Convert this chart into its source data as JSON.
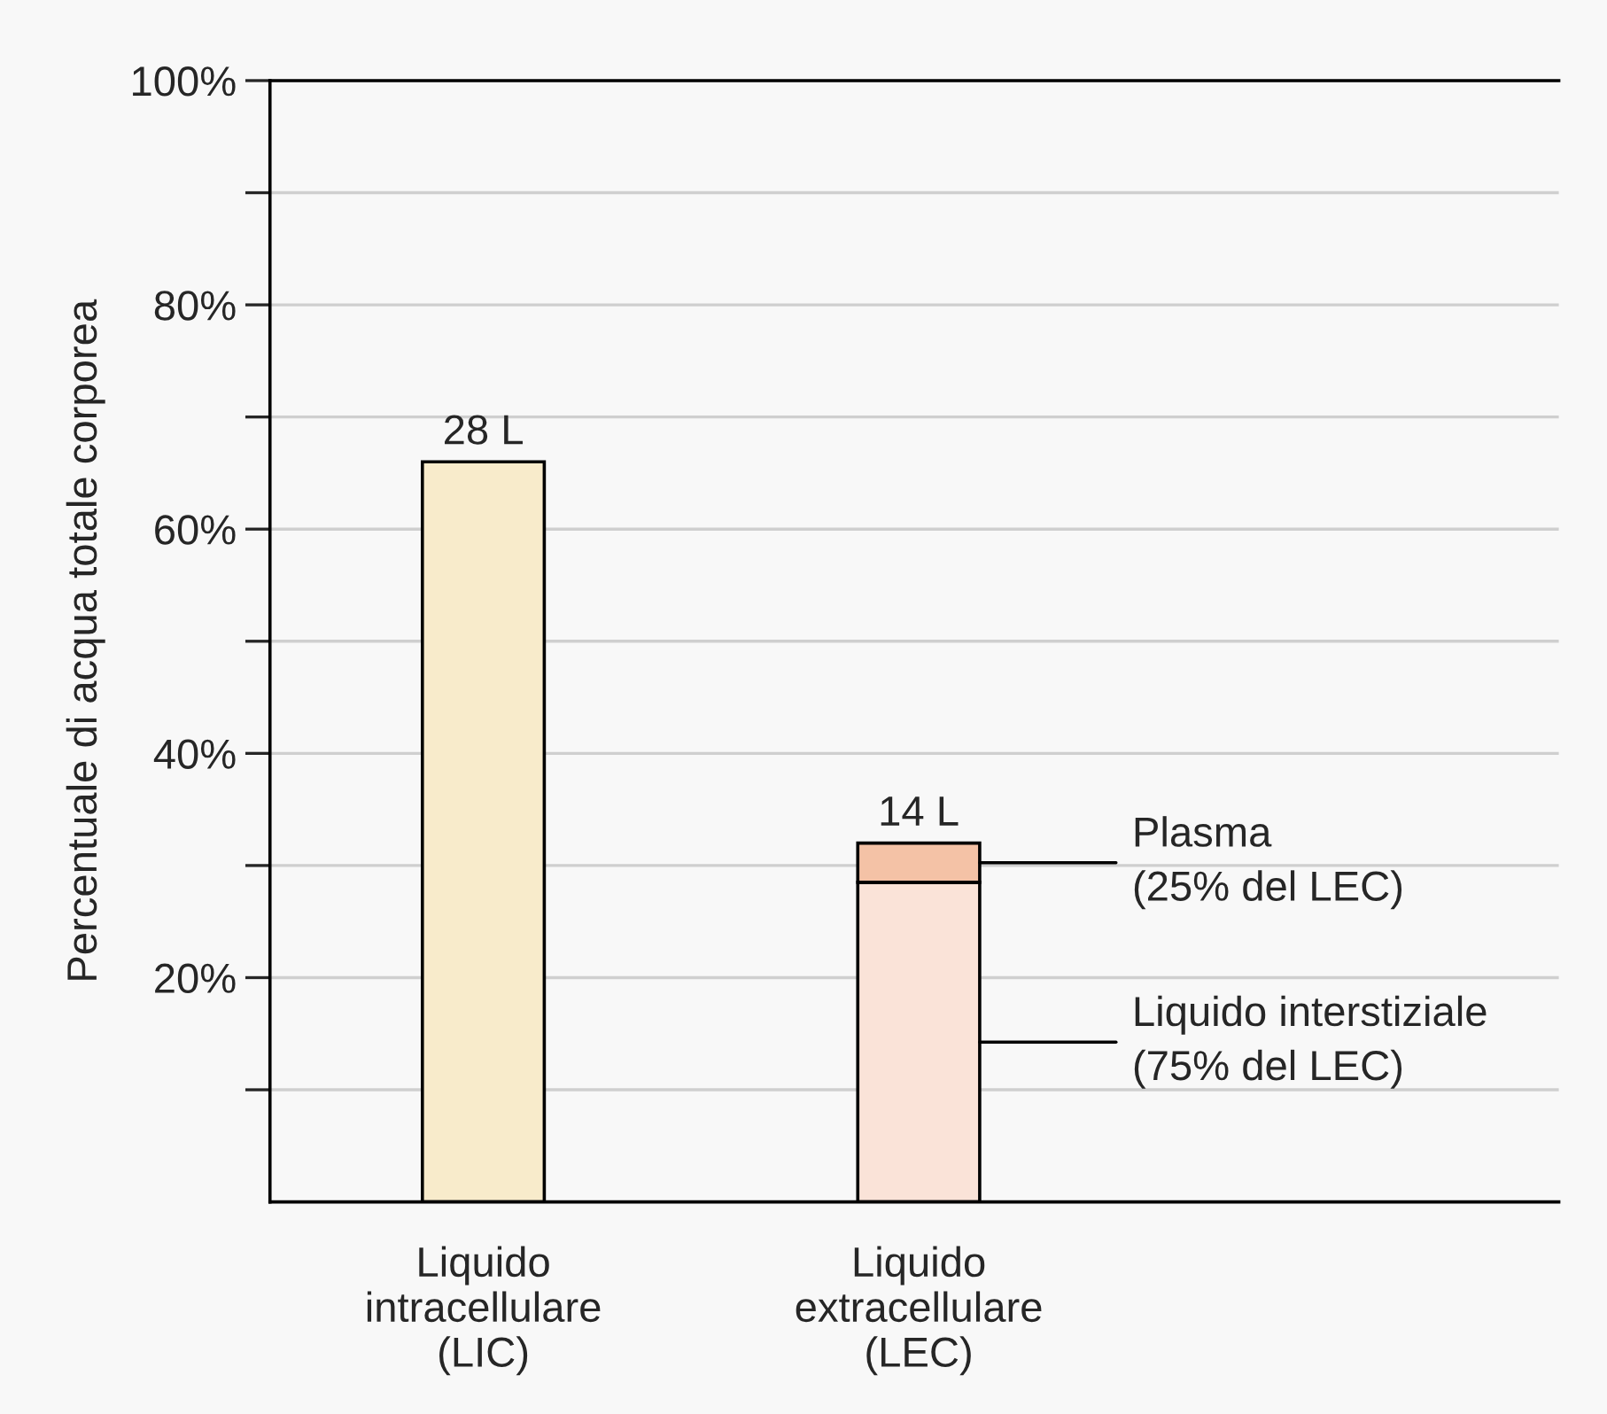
{
  "chart_data": {
    "type": "bar",
    "stacked": true,
    "ylabel": "Percentuale di acqua totale corporea",
    "categories": [
      "Liquido\nintracellulare\n(LIC)",
      "Liquido\nextracellulare\n(LEC)"
    ],
    "series": [
      {
        "colors": [
          "#f8ebcb",
          "#fae3d8"
        ],
        "values": [
          66,
          28.5
        ]
      },
      {
        "color": "#f4c2a6",
        "values": [
          null,
          3.5
        ]
      }
    ],
    "ylim": [
      0,
      100
    ],
    "yticks": [
      {
        "value": 10,
        "label": null
      },
      {
        "value": 20,
        "label": "20%"
      },
      {
        "value": 30,
        "label": null
      },
      {
        "value": 40,
        "label": "40%"
      },
      {
        "value": 50,
        "label": null
      },
      {
        "value": 60,
        "label": "60%"
      },
      {
        "value": 70,
        "label": null
      },
      {
        "value": 80,
        "label": "80%"
      },
      {
        "value": 90,
        "label": null
      },
      {
        "value": 100,
        "label": "100%"
      }
    ],
    "grid": "y",
    "annotations": [
      {
        "text": "28 L",
        "x": "Liquido\nintracellulare\n(LIC)",
        "y": 66
      },
      {
        "text": "14 L",
        "x": "Liquido\nextracellulare\n(LEC)",
        "y": 32
      },
      "Plasma\n(25% del LEC)",
      "Liquido interstiziale\n(75% del LEC)"
    ]
  }
}
